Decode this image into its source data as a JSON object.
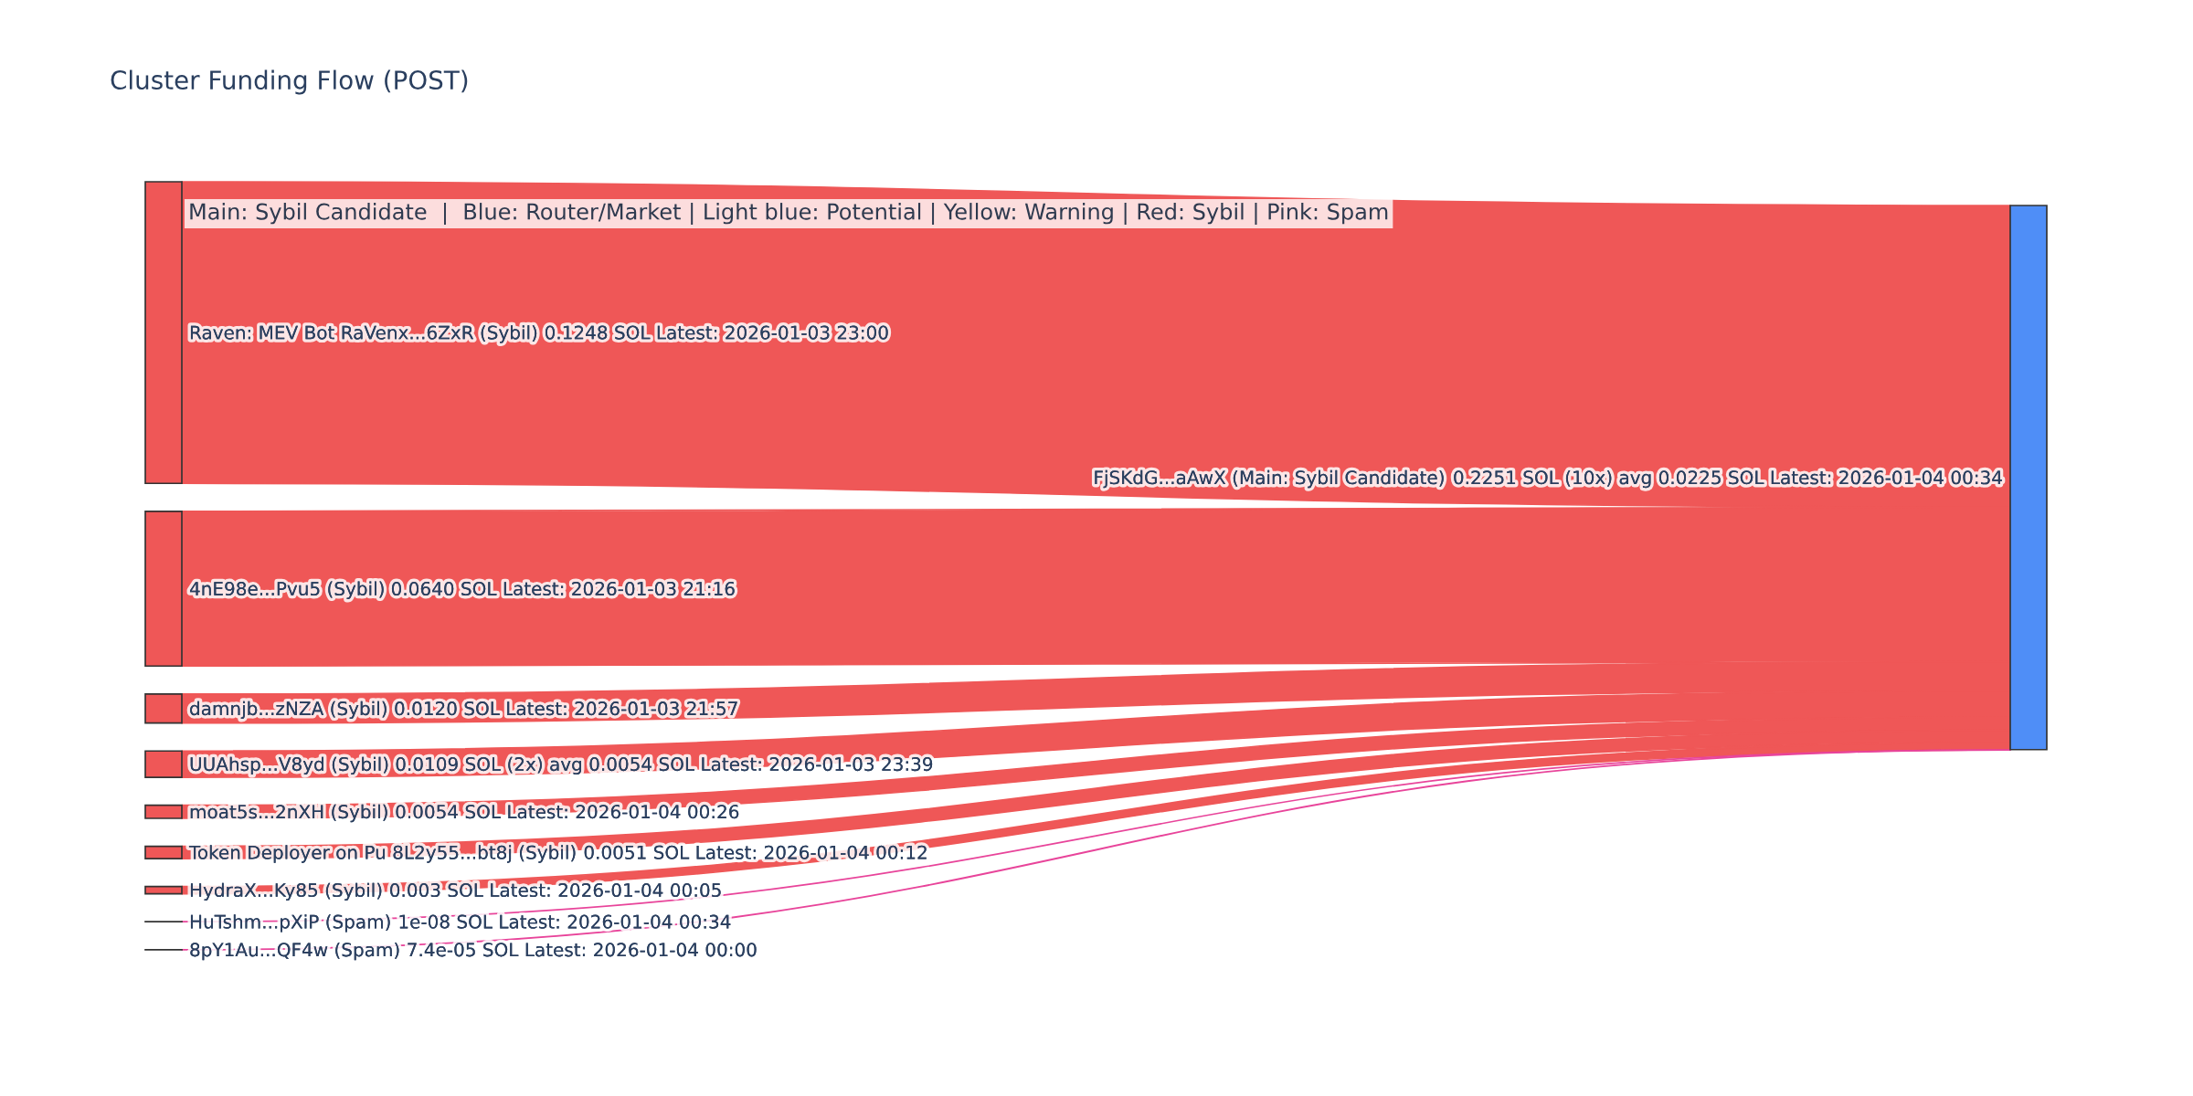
{
  "chart_data": {
    "type": "other",
    "title": "Cluster Funding Flow (POST)",
    "annotations": [
      "Main: Sybil Candidate  |  Blue: Router/Market | Light blue: Potential | Yellow: Warning | Red: Sybil | Pink: Spam"
    ],
    "categories": [
      "Raven: MEV Bot RaVenx...6ZxR (Sybil)",
      "4nE98e...Pvu5 (Sybil)",
      "damnjb...zNZA (Sybil)",
      "UUAhsp...V8yd (Sybil)",
      "moat5s...2nXH (Sybil)",
      "Token Deployer on Pu 8L2y55...bt8j (Sybil)",
      "HydraX...Ky85 (Sybil)",
      "HuTshm...pXiP (Spam)",
      "8pY1Au...QF4w (Spam)",
      "FjSKdG...aAwX (Main: Sybil Candidate)"
    ],
    "values": [
      0.1248,
      0.064,
      0.012,
      0.0109,
      0.0054,
      0.0051,
      0.003,
      1e-08,
      7.4e-05,
      0.2251
    ],
    "value_labels": [
      "0.1248 SOL Latest: 2026-01-03 23:00",
      "0.0640 SOL Latest: 2026-01-03 21:16",
      "0.0120 SOL Latest: 2026-01-03 21:57",
      "0.0109 SOL (2x) avg 0.0054 SOL Latest: 2026-01-03 23:39",
      "0.0054 SOL Latest: 2026-01-04 00:26",
      "0.0051 SOL Latest: 2026-01-04 00:12",
      "0.003 SOL Latest: 2026-01-04 00:05",
      "1e-08 SOL Latest: 2026-01-04 00:34",
      "7.4e-05 SOL Latest: 2026-01-04 00:00",
      "0.2251 SOL (10x) avg 0.0225 SOL Latest: 2026-01-04 00:34"
    ],
    "colors": [
      "#ef5757",
      "#ef5757",
      "#ef5757",
      "#ef5757",
      "#ef5757",
      "#ef5757",
      "#ef5757",
      "#e8449a",
      "#e8449a",
      "#4f8ef7"
    ]
  }
}
